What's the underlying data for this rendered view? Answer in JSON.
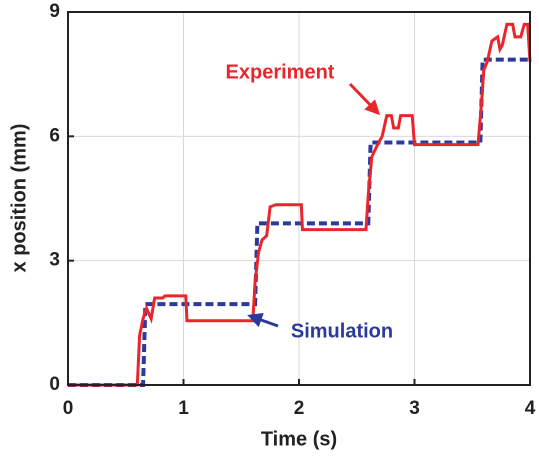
{
  "chart_data": {
    "type": "line",
    "x_label": "Time (s)",
    "y_label": "x position (mm)",
    "xlim": [
      0,
      4
    ],
    "xticks": [
      0,
      1,
      2,
      3,
      4
    ],
    "ylim": [
      0,
      9
    ],
    "yticks": [
      0,
      3,
      6,
      9
    ],
    "grid": true,
    "series": [
      {
        "name": "Experiment",
        "color": "#e8262c",
        "style": "solid",
        "x": [
          0,
          0.6,
          0.62,
          0.65,
          0.68,
          0.72,
          0.75,
          0.82,
          0.84,
          1.02,
          1.03,
          1.05,
          1.6,
          1.62,
          1.65,
          1.68,
          1.72,
          1.75,
          1.8,
          2.02,
          2.03,
          2.58,
          2.6,
          2.63,
          2.68,
          2.72,
          2.76,
          2.8,
          2.82,
          2.86,
          2.88,
          2.98,
          3.0,
          3.55,
          3.58,
          3.6,
          3.63,
          3.67,
          3.72,
          3.74,
          3.76,
          3.8,
          3.85,
          3.87,
          3.92,
          3.95,
          3.98,
          4
        ],
        "values": [
          0,
          0,
          1.2,
          1.6,
          1.85,
          1.6,
          2.1,
          2.1,
          2.15,
          2.15,
          1.55,
          1.55,
          1.55,
          2.5,
          3.2,
          3.5,
          3.6,
          4.3,
          4.35,
          4.35,
          3.75,
          3.75,
          4.6,
          5.5,
          5.8,
          6.0,
          6.5,
          6.5,
          6.2,
          6.2,
          6.5,
          6.5,
          5.8,
          5.8,
          6.8,
          7.6,
          7.8,
          8.3,
          8.4,
          8.1,
          8.2,
          8.7,
          8.7,
          8.4,
          8.4,
          8.7,
          8.7,
          7.8
        ]
      },
      {
        "name": "Simulation",
        "color": "#2b3a9c",
        "style": "dashed",
        "x": [
          0,
          0.65,
          0.67,
          1.62,
          1.64,
          2.6,
          2.62,
          3.57,
          3.59,
          4
        ],
        "values": [
          0,
          0,
          1.95,
          1.95,
          3.9,
          3.9,
          5.85,
          5.85,
          7.85,
          7.85
        ]
      }
    ]
  }
}
